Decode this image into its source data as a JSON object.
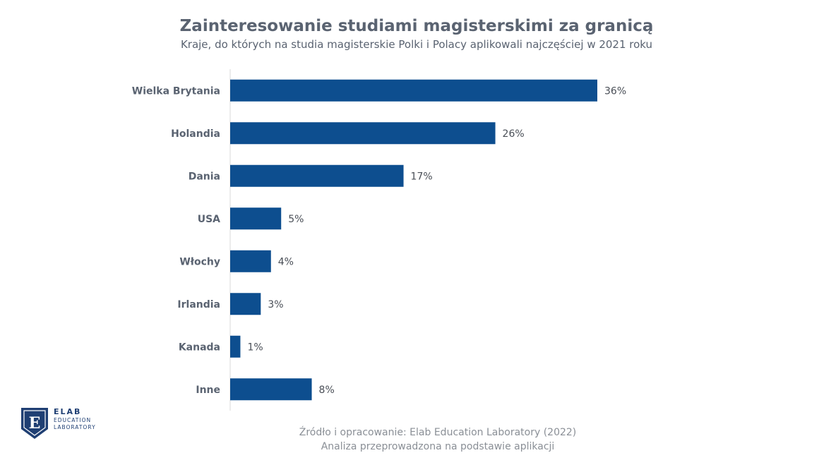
{
  "header": {
    "title": "Zainteresowanie studiami magisterskimi za granicą",
    "subtitle": "Kraje, do których na studia magisterskie Polki i Polacy aplikowali najczęściej w 2021 roku"
  },
  "chart_data": {
    "type": "bar",
    "orientation": "horizontal",
    "categories": [
      "Wielka Brytania",
      "Holandia",
      "Dania",
      "USA",
      "Włochy",
      "Irlandia",
      "Kanada",
      "Inne"
    ],
    "values": [
      36,
      26,
      17,
      5,
      4,
      3,
      1,
      8
    ],
    "value_labels": [
      "36%",
      "26%",
      "17%",
      "5%",
      "4%",
      "3%",
      "1%",
      "8%"
    ],
    "unit": "%",
    "xlim": [
      0,
      36
    ],
    "grid": false,
    "legend": "none",
    "bar_color": "#0d4e8f"
  },
  "footer": {
    "line1": "Źródło i opracowanie: Elab Education Laboratory (2022)",
    "line2": "Analiza przeprowadzona na podstawie aplikacji"
  },
  "logo": {
    "letter": "E",
    "line1": "ELAB",
    "line2": "EDUCATION",
    "line3": "LABORATORY",
    "color": "#1f3f73"
  }
}
